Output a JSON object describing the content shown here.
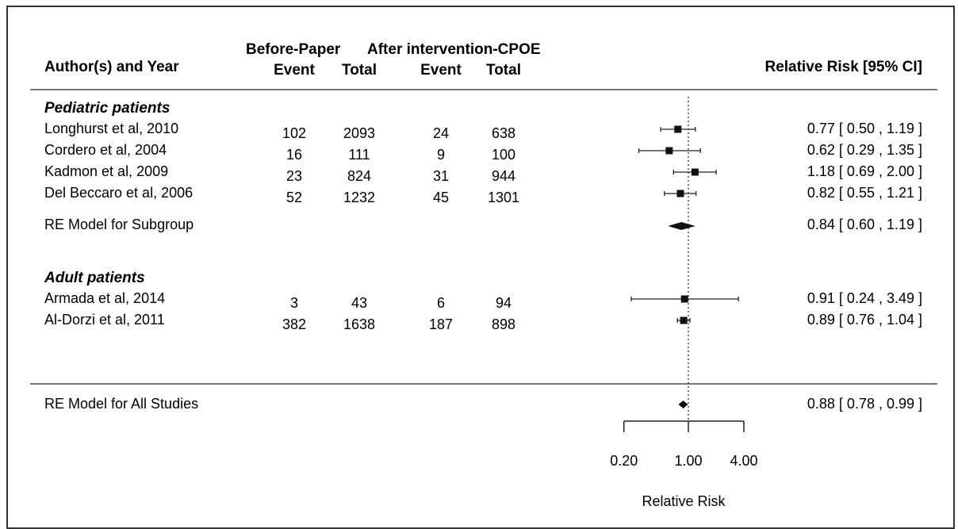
{
  "chart_data": {
    "type": "forest",
    "header": {
      "col_label": "Author(s) and Year",
      "group_before": "Before-Paper",
      "group_after": "After intervention-CPOE",
      "event": "Event",
      "total": "Total",
      "effect_label": "Relative Risk [95% CI]"
    },
    "subgroups": [
      {
        "name": "Pediatric patients",
        "studies": [
          {
            "study": "Longhurst et al, 2010",
            "before_event": "102",
            "before_total": "2093",
            "after_event": "24",
            "after_total": "638",
            "rr": 0.77,
            "lo": 0.5,
            "hi": 1.19,
            "ci_text": "0.77 [ 0.50 , 1.19 ]"
          },
          {
            "study": "Cordero et al, 2004",
            "before_event": "16",
            "before_total": "111",
            "after_event": "9",
            "after_total": "100",
            "rr": 0.62,
            "lo": 0.29,
            "hi": 1.35,
            "ci_text": "0.62 [ 0.29 , 1.35 ]"
          },
          {
            "study": "Kadmon et al, 2009",
            "before_event": "23",
            "before_total": "824",
            "after_event": "31",
            "after_total": "944",
            "rr": 1.18,
            "lo": 0.69,
            "hi": 2.0,
            "ci_text": "1.18 [ 0.69 , 2.00 ]"
          },
          {
            "study": "Del Beccaro et al, 2006",
            "before_event": "52",
            "before_total": "1232",
            "after_event": "45",
            "after_total": "1301",
            "rr": 0.82,
            "lo": 0.55,
            "hi": 1.21,
            "ci_text": "0.82 [ 0.55 , 1.21 ]"
          }
        ],
        "summary": {
          "label": "RE Model for Subgroup",
          "rr": 0.84,
          "lo": 0.6,
          "hi": 1.19,
          "ci_text": "0.84 [ 0.60 , 1.19 ]"
        }
      },
      {
        "name": "Adult patients",
        "studies": [
          {
            "study": "Armada et al, 2014",
            "before_event": "3",
            "before_total": "43",
            "after_event": "6",
            "after_total": "94",
            "rr": 0.91,
            "lo": 0.24,
            "hi": 3.49,
            "ci_text": "0.91 [ 0.24 , 3.49 ]"
          },
          {
            "study": "Al-Dorzi et al, 2011",
            "before_event": "382",
            "before_total": "1638",
            "after_event": "187",
            "after_total": "898",
            "rr": 0.89,
            "lo": 0.76,
            "hi": 1.04,
            "ci_text": "0.89 [ 0.76 , 1.04 ]"
          }
        ]
      }
    ],
    "overall": {
      "label": "RE Model for All Studies",
      "rr": 0.88,
      "lo": 0.78,
      "hi": 0.99,
      "ci_text": "0.88 [ 0.78 , 0.99 ]"
    },
    "x_axis": {
      "label": "Relative Risk",
      "scale": "log",
      "ticks": [
        0.2,
        1.0,
        4.0
      ],
      "tick_labels": [
        "0.20",
        "1.00",
        "4.00"
      ],
      "reference_line": 1.0
    }
  }
}
